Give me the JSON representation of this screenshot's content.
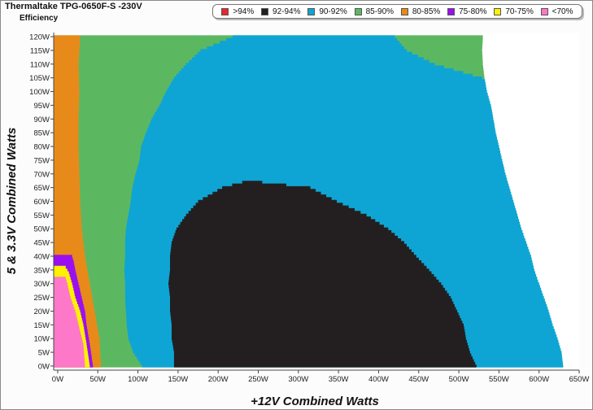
{
  "header": {
    "title": "Thermaltake TPG-0650F-S -230V",
    "subtitle": "Efficiency"
  },
  "chart_data": {
    "type": "heatmap",
    "xlabel": "+12V Combined Watts",
    "ylabel": "5 & 3.3V Combined Watts",
    "x_ticks": [
      {
        "value": 0,
        "label": "0W"
      },
      {
        "value": 50,
        "label": "50W"
      },
      {
        "value": 100,
        "label": "100W"
      },
      {
        "value": 150,
        "label": "150W"
      },
      {
        "value": 200,
        "label": "200W"
      },
      {
        "value": 250,
        "label": "250W"
      },
      {
        "value": 300,
        "label": "300W"
      },
      {
        "value": 350,
        "label": "350W"
      },
      {
        "value": 400,
        "label": "400W"
      },
      {
        "value": 450,
        "label": "450W"
      },
      {
        "value": 500,
        "label": "500W"
      },
      {
        "value": 550,
        "label": "550W"
      },
      {
        "value": 600,
        "label": "600W"
      },
      {
        "value": 650,
        "label": "650W"
      }
    ],
    "y_ticks": [
      {
        "value": 0,
        "label": "0W"
      },
      {
        "value": 5,
        "label": "5W"
      },
      {
        "value": 10,
        "label": "10W"
      },
      {
        "value": 15,
        "label": "15W"
      },
      {
        "value": 20,
        "label": "20W"
      },
      {
        "value": 25,
        "label": "25W"
      },
      {
        "value": 30,
        "label": "30W"
      },
      {
        "value": 35,
        "label": "35W"
      },
      {
        "value": 40,
        "label": "40W"
      },
      {
        "value": 45,
        "label": "45W"
      },
      {
        "value": 50,
        "label": "50W"
      },
      {
        "value": 55,
        "label": "55W"
      },
      {
        "value": 60,
        "label": "60W"
      },
      {
        "value": 65,
        "label": "65W"
      },
      {
        "value": 70,
        "label": "70W"
      },
      {
        "value": 75,
        "label": "75W"
      },
      {
        "value": 80,
        "label": "80W"
      },
      {
        "value": 85,
        "label": "85W"
      },
      {
        "value": 90,
        "label": "90W"
      },
      {
        "value": 95,
        "label": "95W"
      },
      {
        "value": 100,
        "label": "100W"
      },
      {
        "value": 105,
        "label": "105W"
      },
      {
        "value": 110,
        "label": "110W"
      },
      {
        "value": 115,
        "label": "115W"
      },
      {
        "value": 120,
        "label": "120W"
      }
    ],
    "xlim": [
      -5,
      650
    ],
    "ylim": [
      -1.5,
      121.5
    ],
    "legend": [
      {
        "key": "gt94",
        "label": ">94%",
        "color": "#e8262b"
      },
      {
        "key": "b92_94",
        "label": "92-94%",
        "color": "#231f20"
      },
      {
        "key": "b90_92",
        "label": "90-92%",
        "color": "#0ea5d4"
      },
      {
        "key": "b85_90",
        "label": "85-90%",
        "color": "#5cb860"
      },
      {
        "key": "b80_85",
        "label": "80-85%",
        "color": "#e88a1a"
      },
      {
        "key": "b75_80",
        "label": "75-80%",
        "color": "#9a0ff0"
      },
      {
        "key": "b70_75",
        "label": "70-75%",
        "color": "#fff200"
      },
      {
        "key": "lt70",
        "label": "<70%",
        "color": "#fd78c8"
      }
    ],
    "legend_position": "top",
    "region_boundaries": {
      "b80_85_max_x": [
        [
          0,
          54
        ],
        [
          10,
          52
        ],
        [
          20,
          46
        ],
        [
          30,
          40
        ],
        [
          40,
          34
        ],
        [
          50,
          30
        ],
        [
          60,
          28
        ],
        [
          70,
          27
        ],
        [
          80,
          26
        ],
        [
          90,
          26
        ],
        [
          100,
          27
        ],
        [
          110,
          26
        ],
        [
          120,
          28
        ]
      ],
      "b85_90_max_x": [
        [
          0,
          105
        ],
        [
          5,
          94
        ],
        [
          10,
          88
        ],
        [
          15,
          86
        ],
        [
          20,
          85
        ],
        [
          25,
          84
        ],
        [
          30,
          84
        ],
        [
          35,
          83
        ],
        [
          40,
          84
        ],
        [
          45,
          84
        ],
        [
          50,
          85
        ],
        [
          55,
          88
        ],
        [
          60,
          91
        ],
        [
          65,
          93
        ],
        [
          70,
          97
        ],
        [
          75,
          102
        ],
        [
          80,
          104
        ],
        [
          85,
          110
        ],
        [
          90,
          117
        ],
        [
          95,
          127
        ],
        [
          100,
          135
        ],
        [
          105,
          145
        ],
        [
          110,
          160
        ],
        [
          115,
          178
        ],
        [
          120,
          218
        ]
      ],
      "b90_92_max_x": [
        [
          0,
          630
        ],
        [
          5,
          628
        ],
        [
          10,
          623
        ],
        [
          15,
          617
        ],
        [
          20,
          612
        ],
        [
          25,
          606
        ],
        [
          30,
          600
        ],
        [
          35,
          594
        ],
        [
          40,
          590
        ],
        [
          45,
          584
        ],
        [
          50,
          578
        ],
        [
          55,
          573
        ],
        [
          60,
          568
        ],
        [
          65,
          563
        ],
        [
          70,
          558
        ],
        [
          75,
          554
        ],
        [
          80,
          550
        ],
        [
          85,
          546
        ],
        [
          90,
          543
        ],
        [
          95,
          540
        ],
        [
          100,
          535
        ],
        [
          105,
          532
        ],
        [
          110,
          530
        ],
        [
          115,
          529
        ],
        [
          120,
          530
        ]
      ],
      "b90_92_top_min_x": [
        [
          105,
          529
        ],
        [
          110,
          470
        ],
        [
          115,
          435
        ],
        [
          120,
          420
        ]
      ],
      "b92_94_min_x": [
        [
          0,
          145
        ],
        [
          5,
          145
        ],
        [
          10,
          142
        ],
        [
          15,
          142
        ],
        [
          20,
          140
        ],
        [
          25,
          140
        ],
        [
          30,
          138
        ],
        [
          35,
          140
        ],
        [
          40,
          140
        ],
        [
          45,
          142
        ],
        [
          50,
          148
        ],
        [
          55,
          160
        ],
        [
          60,
          175
        ],
        [
          65,
          205
        ],
        [
          67,
          230
        ]
      ],
      "b92_94_max_x": [
        [
          0,
          522
        ],
        [
          5,
          514
        ],
        [
          10,
          509
        ],
        [
          15,
          506
        ],
        [
          20,
          498
        ],
        [
          25,
          490
        ],
        [
          30,
          478
        ],
        [
          35,
          463
        ],
        [
          40,
          447
        ],
        [
          45,
          432
        ],
        [
          50,
          412
        ],
        [
          55,
          385
        ],
        [
          60,
          348
        ],
        [
          65,
          315
        ],
        [
          67,
          255
        ]
      ],
      "lt70_max_x": [
        [
          0,
          34
        ],
        [
          8,
          32
        ],
        [
          15,
          26
        ],
        [
          20,
          22
        ],
        [
          25,
          16
        ],
        [
          30,
          12
        ],
        [
          32,
          10
        ]
      ],
      "b70_75_max_x": [
        [
          0,
          40
        ],
        [
          8,
          36
        ],
        [
          15,
          32
        ],
        [
          20,
          28
        ],
        [
          25,
          22
        ],
        [
          30,
          18
        ],
        [
          34,
          14
        ],
        [
          36,
          10
        ]
      ],
      "b75_80_max_x": [
        [
          0,
          44
        ],
        [
          8,
          40
        ],
        [
          15,
          36
        ],
        [
          20,
          34
        ],
        [
          25,
          30
        ],
        [
          30,
          26
        ],
        [
          35,
          22
        ],
        [
          38,
          20
        ],
        [
          40,
          18
        ]
      ]
    }
  }
}
